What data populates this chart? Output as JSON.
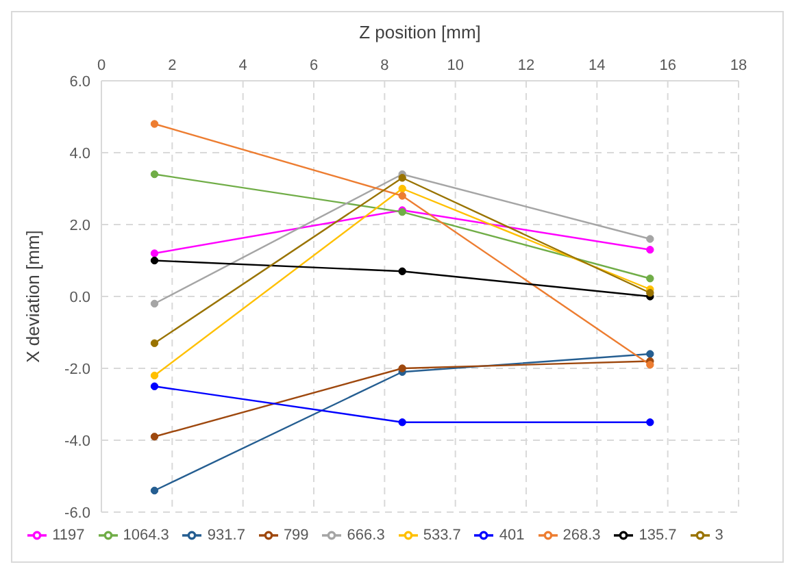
{
  "chart_data": {
    "type": "line",
    "xlabel": "Z position [mm]",
    "ylabel": "X deviation [mm]",
    "x": [
      1.5,
      8.5,
      15.5
    ],
    "xlim": [
      0,
      18
    ],
    "xticks": [
      0,
      2,
      4,
      6,
      8,
      10,
      12,
      14,
      16,
      18
    ],
    "ylim": [
      -6,
      6
    ],
    "yticks": [
      {
        "value": -6,
        "label": "-6.0"
      },
      {
        "value": -4,
        "label": "-4.0"
      },
      {
        "value": -2,
        "label": "-2.0"
      },
      {
        "value": 0,
        "label": "0.0"
      },
      {
        "value": 2,
        "label": "2.0"
      },
      {
        "value": 4,
        "label": "4.0"
      },
      {
        "value": 6,
        "label": "6.0"
      }
    ],
    "grid": true,
    "legend": "bottom",
    "marker": "circle",
    "line_style": "solid",
    "series": [
      {
        "name": "1197",
        "color": "#ff00ff",
        "values": [
          1.2,
          2.4,
          1.3
        ]
      },
      {
        "name": "1064.3",
        "color": "#70ad47",
        "values": [
          3.4,
          2.35,
          0.5
        ]
      },
      {
        "name": "931.7",
        "color": "#255e91",
        "values": [
          -5.4,
          -2.1,
          -1.6
        ]
      },
      {
        "name": "799",
        "color": "#9e480e",
        "values": [
          -3.9,
          -2.0,
          -1.8
        ]
      },
      {
        "name": "666.3",
        "color": "#a5a5a5",
        "values": [
          -0.2,
          3.4,
          1.6
        ]
      },
      {
        "name": "533.7",
        "color": "#ffc000",
        "values": [
          -2.2,
          3.0,
          0.2
        ]
      },
      {
        "name": "401",
        "color": "#0000ff",
        "values": [
          -2.5,
          -3.5,
          -3.5
        ]
      },
      {
        "name": "268.3",
        "color": "#ed7d31",
        "values": [
          4.8,
          2.8,
          -1.9
        ]
      },
      {
        "name": "135.7",
        "color": "#000000",
        "values": [
          1.0,
          0.7,
          0.0
        ]
      },
      {
        "name": "3",
        "color": "#997300",
        "values": [
          -1.3,
          3.3,
          0.1
        ]
      }
    ]
  }
}
